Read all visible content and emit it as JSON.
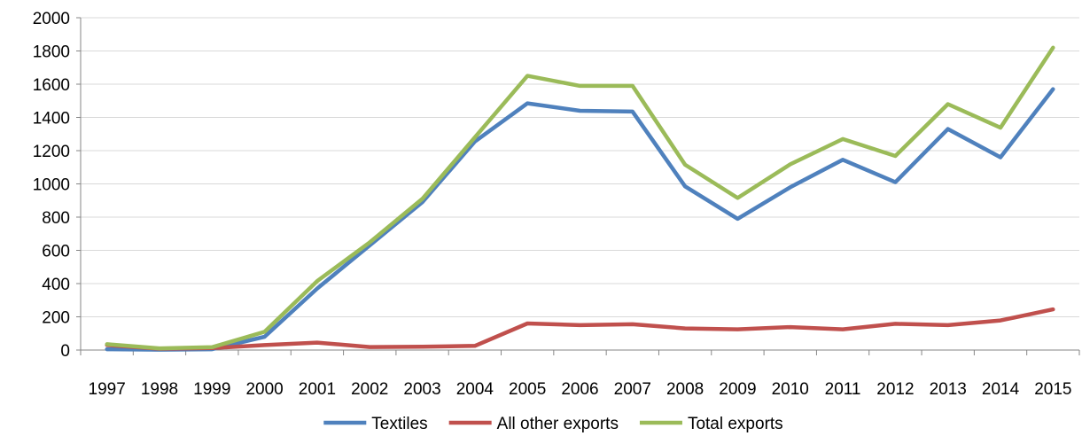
{
  "chart_data": {
    "type": "line",
    "categories": [
      "1997",
      "1998",
      "1999",
      "2000",
      "2001",
      "2002",
      "2003",
      "2004",
      "2005",
      "2006",
      "2007",
      "2008",
      "2009",
      "2010",
      "2011",
      "2012",
      "2013",
      "2014",
      "2015"
    ],
    "series": [
      {
        "name": "Textiles",
        "color": "#4f81bd",
        "values": [
          5,
          2,
          5,
          80,
          370,
          630,
          890,
          1255,
          1485,
          1440,
          1435,
          985,
          790,
          980,
          1145,
          1010,
          1330,
          1160,
          1570
        ]
      },
      {
        "name": "All other exports",
        "color": "#c0504d",
        "values": [
          30,
          8,
          12,
          30,
          45,
          18,
          20,
          25,
          160,
          150,
          155,
          130,
          125,
          138,
          125,
          158,
          150,
          178,
          245
        ]
      },
      {
        "name": "Total exports",
        "color": "#9bbb59",
        "values": [
          35,
          10,
          17,
          110,
          415,
          648,
          910,
          1280,
          1650,
          1590,
          1590,
          1115,
          915,
          1118,
          1270,
          1168,
          1480,
          1338,
          1820
        ]
      }
    ],
    "y_ticks": [
      "0",
      "200",
      "400",
      "600",
      "800",
      "1000",
      "1200",
      "1400",
      "1600",
      "1800",
      "2000"
    ],
    "ylim": [
      0,
      2000
    ],
    "grid": true,
    "legend_position": "bottom"
  }
}
